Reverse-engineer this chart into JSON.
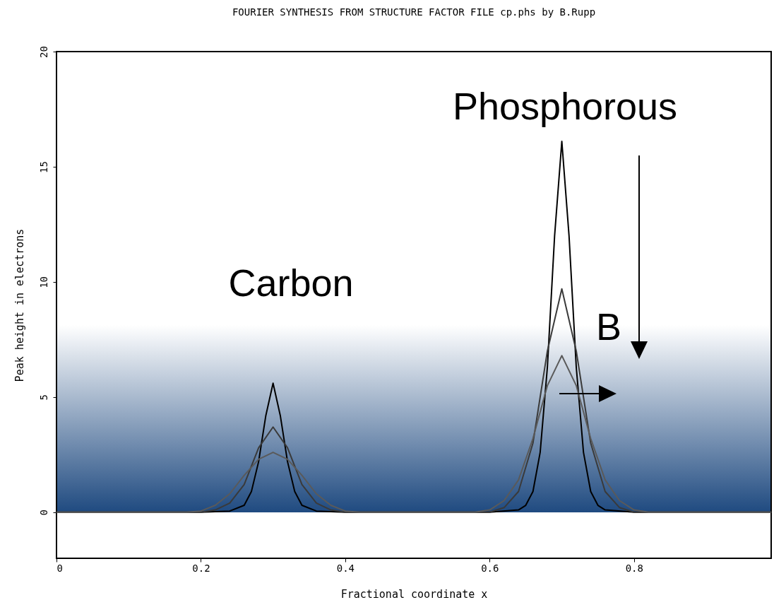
{
  "chart_data": {
    "type": "line",
    "title": "FOURIER SYNTHESIS FROM STRUCTURE FACTOR FILE cp.phs by B.Rupp",
    "xlabel": "Fractional coordinate x",
    "ylabel": "Peak height in electrons",
    "xlim": [
      0,
      0.99
    ],
    "xticks": [
      0,
      0.2,
      0.4,
      0.6,
      0.8
    ],
    "ylim": [
      -2,
      20
    ],
    "yticks": [
      0,
      5,
      10,
      15,
      20
    ],
    "grid": false,
    "legend": false,
    "marker": "none",
    "line_style": "solid",
    "annotations": [
      "Carbon",
      "Phosphorous",
      "B"
    ],
    "series": [
      {
        "color": "#000000",
        "x": [
          0,
          0.2,
          0.24,
          0.26,
          0.27,
          0.28,
          0.29,
          0.3,
          0.31,
          0.32,
          0.33,
          0.34,
          0.36,
          0.4,
          0.6,
          0.64,
          0.65,
          0.66,
          0.67,
          0.68,
          0.69,
          0.7,
          0.71,
          0.72,
          0.73,
          0.74,
          0.75,
          0.76,
          0.8,
          0.99
        ],
        "values": [
          0,
          0,
          0.05,
          0.3,
          0.9,
          2.2,
          4.2,
          5.6,
          4.2,
          2.2,
          0.9,
          0.3,
          0.05,
          0,
          0,
          0.1,
          0.3,
          0.9,
          2.6,
          6.3,
          12,
          16.1,
          12,
          6.3,
          2.6,
          0.9,
          0.3,
          0.1,
          0,
          0
        ]
      },
      {
        "color": "#3a3a3a",
        "x": [
          0,
          0.2,
          0.22,
          0.24,
          0.26,
          0.28,
          0.3,
          0.32,
          0.34,
          0.36,
          0.38,
          0.4,
          0.6,
          0.62,
          0.64,
          0.66,
          0.68,
          0.7,
          0.72,
          0.74,
          0.76,
          0.78,
          0.8,
          0.99
        ],
        "values": [
          0,
          0,
          0.1,
          0.4,
          1.2,
          2.8,
          3.7,
          2.8,
          1.2,
          0.4,
          0.1,
          0,
          0,
          0.2,
          0.9,
          3,
          7,
          9.7,
          7,
          3,
          0.9,
          0.2,
          0,
          0
        ]
      },
      {
        "color": "#5a5a5a",
        "x": [
          0,
          0.18,
          0.2,
          0.22,
          0.24,
          0.26,
          0.28,
          0.3,
          0.32,
          0.34,
          0.36,
          0.38,
          0.4,
          0.42,
          0.58,
          0.6,
          0.62,
          0.64,
          0.66,
          0.68,
          0.7,
          0.72,
          0.74,
          0.76,
          0.78,
          0.8,
          0.82,
          0.99
        ],
        "values": [
          0,
          0,
          0.05,
          0.3,
          0.8,
          1.6,
          2.3,
          2.6,
          2.3,
          1.6,
          0.8,
          0.3,
          0.05,
          0,
          0,
          0.1,
          0.5,
          1.4,
          3.2,
          5.5,
          6.8,
          5.5,
          3.2,
          1.4,
          0.5,
          0.1,
          0,
          0
        ]
      }
    ]
  }
}
